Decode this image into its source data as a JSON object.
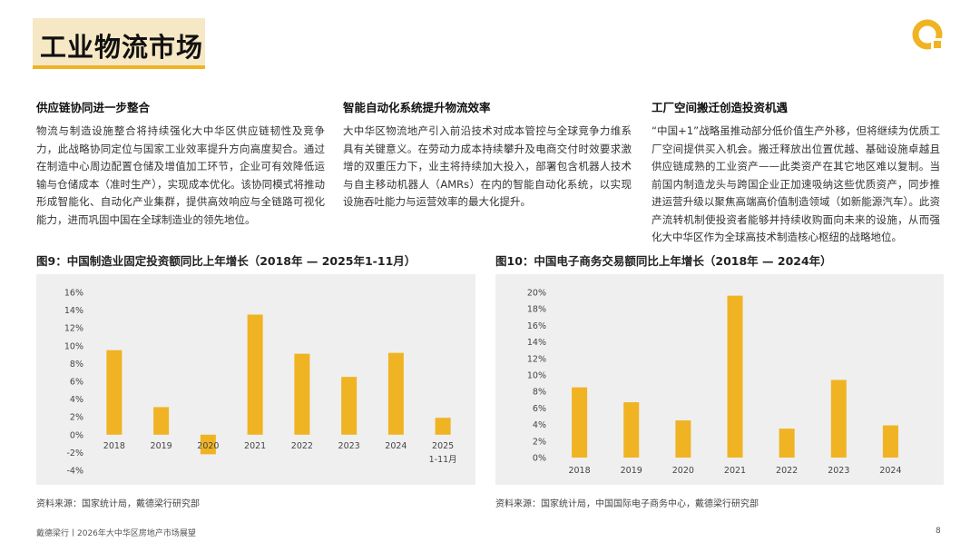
{
  "page": {
    "title": "工业物流市场",
    "footer_left": "戴德梁行丨2026年大中华区房地产市场展望",
    "page_number": "8"
  },
  "columns": [
    {
      "heading": "供应链协同进一步整合",
      "body": "物流与制造设施整合将持续强化大中华区供应链韧性及竞争力，此战略协同定位与国家工业效率提升方向高度契合。通过在制造中心周边配置仓储及增值加工环节，企业可有效降低运输与仓储成本（准时生产），实现成本优化。该协同模式将推动形成智能化、自动化产业集群，提供高效响应与全链路可视化能力，进而巩固中国在全球制造业的领先地位。"
    },
    {
      "heading": "智能自动化系统提升物流效率",
      "body": "大中华区物流地产引入前沿技术对成本管控与全球竞争力维系具有关键意义。在劳动力成本持续攀升及电商交付时效要求激增的双重压力下，业主将持续加大投入，部署包含机器人技术与自主移动机器人（AMRs）在内的智能自动化系统，以实现设施吞吐能力与运营效率的最大化提升。"
    },
    {
      "heading": "工厂空间搬迁创造投资机遇",
      "body": "“中国+1”战略虽推动部分低价值生产外移，但将继续为优质工厂空间提供买入机会。搬迁释放出位置优越、基础设施卓越且供应链成熟的工业资产——此类资产在其它地区难以复制。当前国内制造龙头与跨国企业正加速吸纳这些优质资产，同步推进运营升级以聚焦高端高价值制造领域（如新能源汽车）。此资产流转机制使投资者能够并持续收购面向未来的设施，从而强化大中华区作为全球高技术制造核心枢纽的战略地位。"
    }
  ],
  "charts": [
    {
      "title": "图9：中国制造业固定投资额同比上年增长（2018年 — 2025年1-11月）",
      "source": "资料来源：国家统计局，戴德梁行研究部"
    },
    {
      "title": "图10：中国电子商务交易额同比上年增长（2018年 — 2024年）",
      "source": "资料来源：国家统计局，中国国际电子商务中心，戴德梁行研究部"
    }
  ],
  "colors": {
    "bar": "#f0b323",
    "accent": "#f0b323",
    "panel": "#efefef"
  },
  "chart_data": [
    {
      "type": "bar",
      "categories": [
        "2018",
        "2019",
        "2020",
        "2021",
        "2022",
        "2023",
        "2024",
        "2025\n1-11月"
      ],
      "values": [
        9.5,
        3.1,
        -2.2,
        13.5,
        9.1,
        6.5,
        9.2,
        1.9
      ],
      "ylim": [
        -4,
        16
      ],
      "yticks": [
        "-4%",
        "-2%",
        "0%",
        "2%",
        "4%",
        "6%",
        "8%",
        "10%",
        "12%",
        "14%",
        "16%"
      ],
      "grid": false
    },
    {
      "type": "bar",
      "categories": [
        "2018",
        "2019",
        "2020",
        "2021",
        "2022",
        "2023",
        "2024"
      ],
      "values": [
        8.5,
        6.7,
        4.5,
        19.6,
        3.5,
        9.4,
        3.9
      ],
      "ylim": [
        0,
        20
      ],
      "yticks": [
        "0%",
        "2%",
        "4%",
        "6%",
        "8%",
        "10%",
        "12%",
        "14%",
        "16%",
        "18%",
        "20%"
      ],
      "grid": false
    }
  ]
}
